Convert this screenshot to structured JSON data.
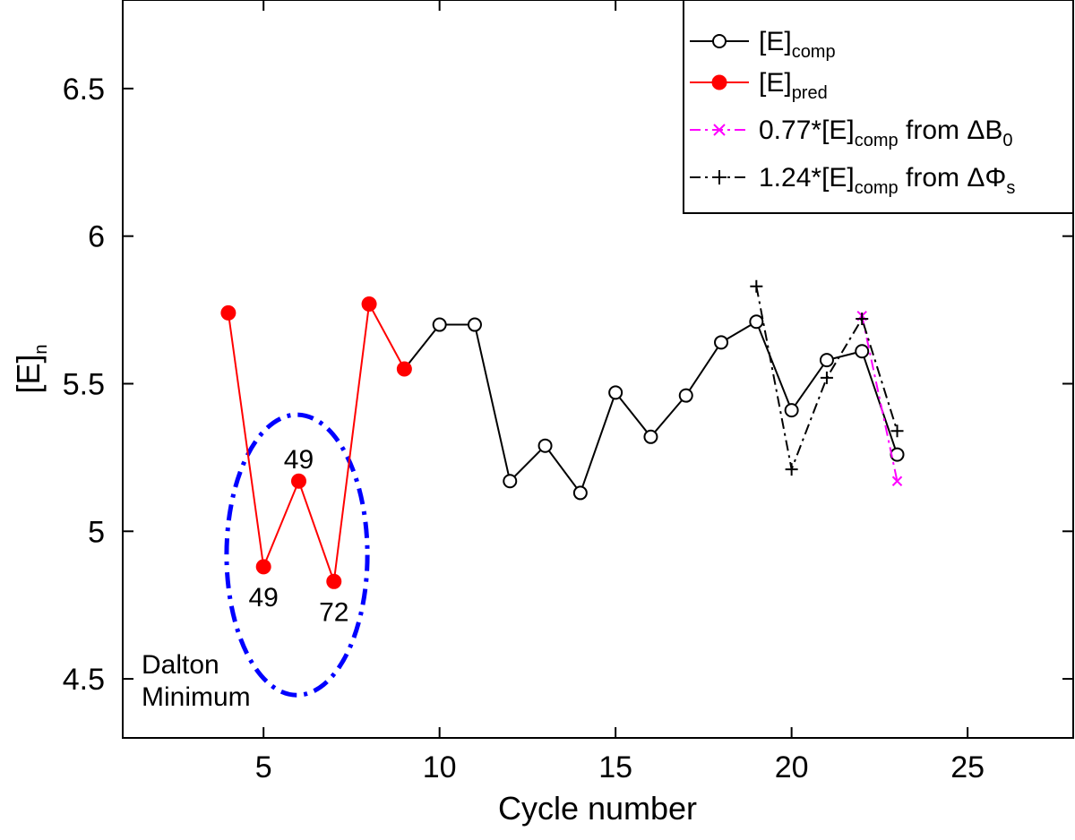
{
  "chart_data": {
    "type": "line",
    "xlabel": "Cycle number",
    "ylabel_main": "[E]",
    "ylabel_sub": "n",
    "xlim": [
      1,
      28
    ],
    "ylim": [
      4.3,
      6.8
    ],
    "xticks": [
      5,
      10,
      15,
      20,
      25
    ],
    "yticks": [
      4.5,
      5,
      5.5,
      6,
      6.5
    ],
    "ytick_labels": [
      "4.5",
      "5",
      "5.5",
      "6",
      "6.5"
    ],
    "legend_position": "top-right",
    "series": [
      {
        "name": "[E]comp",
        "label_main": "[E]",
        "label_sub": "comp",
        "label_tail": "",
        "color": "#000000",
        "style": "solid",
        "marker": "circle-open",
        "x": [
          9,
          10,
          11,
          12,
          13,
          14,
          15,
          16,
          17,
          18,
          19,
          20,
          21,
          22,
          23
        ],
        "y": [
          5.55,
          5.7,
          5.7,
          5.17,
          5.29,
          5.13,
          5.47,
          5.32,
          5.46,
          5.64,
          5.71,
          5.41,
          5.58,
          5.61,
          5.26
        ]
      },
      {
        "name": "[E]pred",
        "label_main": "[E]",
        "label_sub": "pred",
        "label_tail": "",
        "color": "#ff0000",
        "style": "solid",
        "marker": "circle-filled",
        "x": [
          4,
          5,
          6,
          7,
          8,
          9
        ],
        "y": [
          5.74,
          4.88,
          5.17,
          4.83,
          5.77,
          5.55
        ]
      },
      {
        "name": "0.77*[E]comp from ΔB0",
        "label_main": "0.77*[E]",
        "label_sub": "comp",
        "label_tail": " from ΔB",
        "label_tail_sub": "0",
        "color": "#ff00ff",
        "style": "dashdot",
        "marker": "x",
        "x": [
          22,
          23
        ],
        "y": [
          5.73,
          5.17
        ]
      },
      {
        "name": "1.24*[E]comp from ΔΦs",
        "label_main": "1.24*[E]",
        "label_sub": "comp",
        "label_tail": " from ΔΦ",
        "label_tail_sub": "s",
        "color": "#000000",
        "style": "dashdot",
        "marker": "plus",
        "x": [
          19,
          20,
          21,
          22,
          23
        ],
        "y": [
          5.83,
          5.21,
          5.52,
          5.72,
          5.34
        ]
      }
    ],
    "point_annotations": [
      {
        "text": "49",
        "x": 6,
        "y": 5.17,
        "pos": "above"
      },
      {
        "text": "49",
        "x": 5,
        "y": 4.88,
        "pos": "below"
      },
      {
        "text": "72",
        "x": 7,
        "y": 4.83,
        "pos": "below"
      }
    ],
    "region_annotation": {
      "label_line1": "Dalton",
      "label_line2": "Minimum",
      "color": "#0000ff",
      "center_x": 5.95,
      "center_y": 4.92,
      "radius_x": 2.0,
      "radius_y": 0.475
    }
  }
}
